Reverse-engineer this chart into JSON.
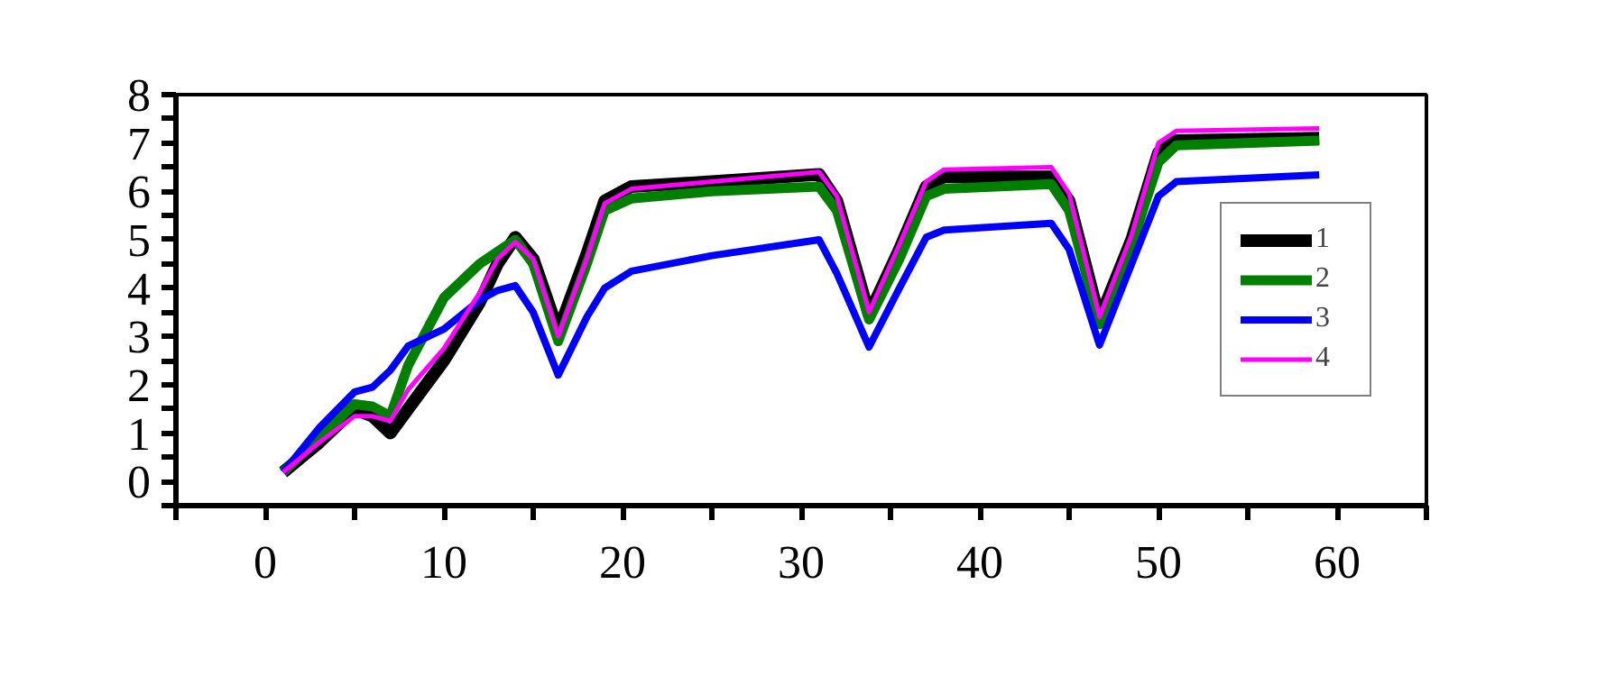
{
  "chart_data": {
    "type": "line",
    "x": [
      1,
      3,
      5,
      6,
      7,
      8,
      10,
      12,
      13,
      14,
      15,
      16.4,
      18,
      19,
      20.5,
      25,
      31,
      32,
      33.8,
      35.5,
      37,
      38,
      44,
      45,
      46.7,
      48.5,
      50,
      51,
      59
    ],
    "series": [
      {
        "name": "1",
        "color": "#000000",
        "values": [
          0.19,
          0.8,
          1.5,
          1.35,
          1.0,
          1.5,
          2.5,
          3.7,
          4.5,
          5.05,
          4.6,
          3.1,
          4.7,
          5.8,
          6.1,
          6.2,
          6.35,
          5.8,
          3.45,
          4.8,
          6.1,
          6.3,
          6.3,
          5.8,
          3.35,
          5.0,
          6.8,
          7.05,
          7.1
        ]
      },
      {
        "name": "2",
        "color": "#007f00",
        "values": [
          0.19,
          0.9,
          1.6,
          1.55,
          1.35,
          2.4,
          3.8,
          4.5,
          4.75,
          5.0,
          4.5,
          2.9,
          4.5,
          5.6,
          5.85,
          6.0,
          6.1,
          5.6,
          3.35,
          4.6,
          5.9,
          6.05,
          6.15,
          5.6,
          3.25,
          4.9,
          6.6,
          6.95,
          7.05
        ]
      },
      {
        "name": "3",
        "color": "#0000ff",
        "values": [
          0.19,
          1.1,
          1.85,
          1.95,
          2.3,
          2.8,
          3.15,
          3.75,
          3.95,
          4.05,
          3.5,
          2.2,
          3.4,
          4.0,
          4.35,
          4.67,
          5.0,
          4.3,
          2.78,
          4.0,
          5.05,
          5.2,
          5.34,
          4.8,
          2.82,
          4.5,
          5.9,
          6.2,
          6.34
        ]
      },
      {
        "name": "4",
        "color": "#ff00ff",
        "values": [
          0.19,
          0.8,
          1.35,
          1.35,
          1.25,
          1.9,
          2.75,
          3.9,
          4.6,
          4.95,
          4.6,
          3.0,
          4.6,
          5.75,
          6.05,
          6.2,
          6.4,
          5.9,
          3.5,
          4.9,
          6.2,
          6.45,
          6.5,
          5.95,
          3.4,
          5.1,
          7.0,
          7.25,
          7.3
        ]
      }
    ],
    "xlim": [
      -5,
      65
    ],
    "xticks": [
      {
        "value": -5,
        "label": null
      },
      0,
      {
        "value": 5,
        "label": null
      },
      10,
      {
        "value": 15,
        "label": null
      },
      20,
      {
        "value": 25,
        "label": null
      },
      30,
      {
        "value": 35,
        "label": null
      },
      40,
      {
        "value": 45,
        "label": null
      },
      50,
      {
        "value": 55,
        "label": null
      },
      60,
      {
        "value": 65,
        "label": null
      }
    ],
    "ylim": [
      -0.5,
      8
    ],
    "yticks": [
      {
        "value": -0.5,
        "label": null
      },
      0,
      {
        "value": 0.5,
        "label": null
      },
      1,
      {
        "value": 1.5,
        "label": null
      },
      2,
      {
        "value": 2.5,
        "label": null
      },
      3,
      {
        "value": 3.5,
        "label": null
      },
      4,
      {
        "value": 4.5,
        "label": null
      },
      5,
      {
        "value": 5.5,
        "label": null
      },
      6,
      {
        "value": 6.5,
        "label": null
      },
      7,
      {
        "value": 7.5,
        "label": null
      },
      8
    ],
    "grid": false,
    "legend": "right",
    "line_style": "solid"
  }
}
